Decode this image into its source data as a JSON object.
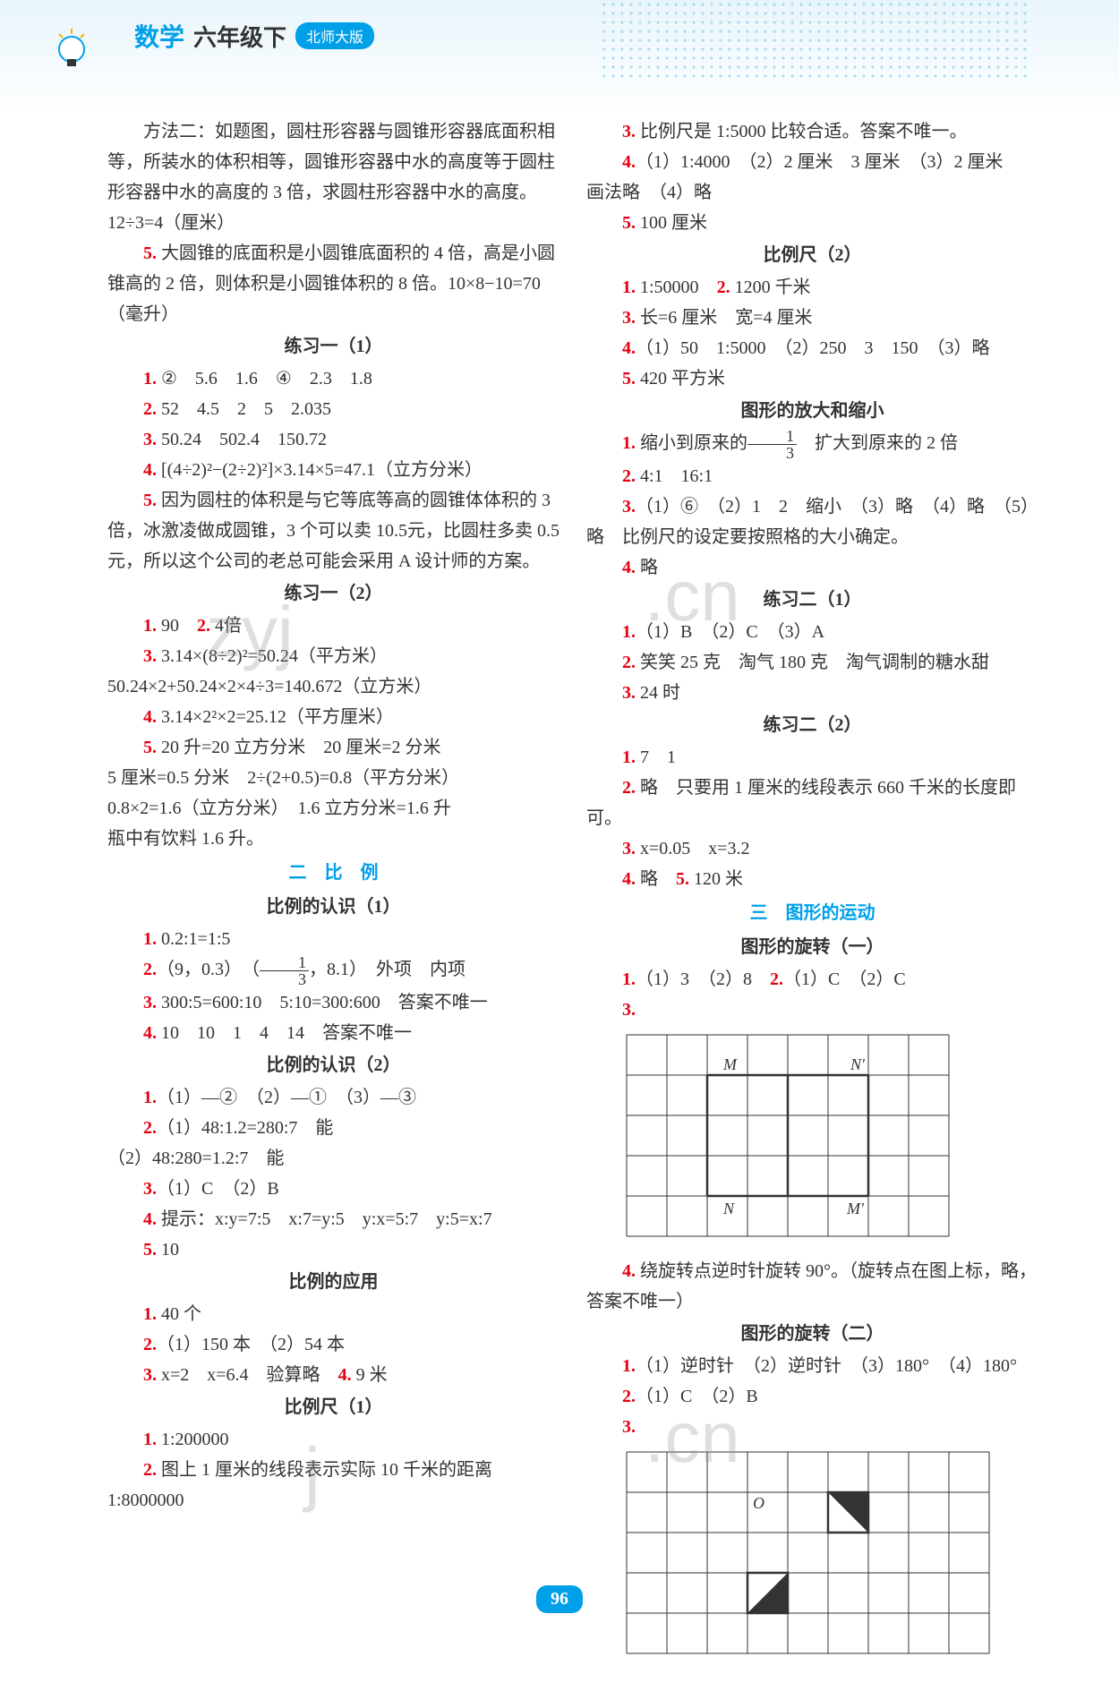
{
  "header": {
    "subject": "数学",
    "grade": "六年级下",
    "edition": "北师大版"
  },
  "watermarks": {
    "w1": "zyj",
    "w2": ".cn",
    "w3": "j",
    "w4": ".cn"
  },
  "left": {
    "p1": "方法二：如题图，圆柱形容器与圆锥形容器底面积相等，所装水的体积相等，圆锥形容器中水的高度等于圆柱形容器中水的高度的 3 倍，求圆柱形容器中水的高度。12÷3=4（厘米）",
    "q5a": "5.",
    "q5a_text": " 大圆锥的底面积是小圆锥底面积的 4 倍，高是小圆锥高的 2 倍，则体积是小圆锥体积的 8 倍。10×8−10=70（毫升）",
    "title_lx1_1": "练习一（1）",
    "lx1_1_1": "1.",
    "lx1_1_1t": " ②　5.6　1.6　④　2.3　1.8",
    "lx1_1_2": "2.",
    "lx1_1_2t": " 52　4.5　2　5　2.035",
    "lx1_1_3": "3.",
    "lx1_1_3t": " 50.24　502.4　150.72",
    "lx1_1_4": "4.",
    "lx1_1_4t": " [(4÷2)²−(2÷2)²]×3.14×5=47.1（立方分米）",
    "lx1_1_5": "5.",
    "lx1_1_5t": " 因为圆柱的体积是与它等底等高的圆锥体体积的 3 倍，冰激凌做成圆锥，3 个可以卖 10.5元，比圆柱多卖 0.5 元，所以这个公司的老总可能会采用 A 设计师的方案。",
    "title_lx1_2": "练习一（2）",
    "lx1_2_1": "1.",
    "lx1_2_1t": " 90　",
    "lx1_2_2": "2.",
    "lx1_2_2t": " 4倍",
    "lx1_2_3": "3.",
    "lx1_2_3t": " 3.14×(8÷2)²=50.24（平方米）",
    "lx1_2_3b": "50.24×2+50.24×2×4÷3=140.672（立方米）",
    "lx1_2_4": "4.",
    "lx1_2_4t": " 3.14×2²×2=25.12（平方厘米）",
    "lx1_2_5": "5.",
    "lx1_2_5t": " 20 升=20 立方分米　20 厘米=2 分米",
    "lx1_2_5b": "5 厘米=0.5 分米　2÷(2+0.5)=0.8（平方分米）",
    "lx1_2_5c": "0.8×2=1.6（立方分米）　1.6 立方分米=1.6 升",
    "lx1_2_5d": "瓶中有饮料 1.6 升。",
    "sec2_title": "二　比　例",
    "title_bl1": "比例的认识（1）",
    "bl1_1": "1.",
    "bl1_1t": " 0.2:1=1:5",
    "bl1_2": "2.",
    "bl1_2t": "（9，0.3）　",
    "bl1_2t2": "　外项　内项",
    "bl1_3": "3.",
    "bl1_3t": " 300:5=600:10　5:10=300:600　答案不唯一",
    "bl1_4": "4.",
    "bl1_4t": " 10　10　1　4　14　答案不唯一",
    "title_bl2": "比例的认识（2）",
    "bl2_1": "1.",
    "bl2_1t": "（1）—②　（2）—①　（3）—③",
    "bl2_2": "2.",
    "bl2_2t": "（1）48:1.2=280:7　能",
    "bl2_2b": "（2）48:280=1.2:7　能",
    "bl2_3": "3.",
    "bl2_3t": "（1）C　（2）B",
    "bl2_4": "4.",
    "bl2_4t": " 提示：x:y=7:5　x:7=y:5　y:x=5:7　y:5=x:7",
    "bl2_5": "5.",
    "bl2_5t": " 10",
    "title_bly": "比例的应用",
    "bly_1": "1.",
    "bly_1t": " 40 个",
    "bly_2": "2.",
    "bly_2t": "（1）150 本　（2）54 本",
    "bly_3": "3.",
    "bly_3t": " x=2　x=6.4　验算略　",
    "bly_4": "4.",
    "bly_4t": " 9 米",
    "title_blc1": "比例尺（1）",
    "blc1_1": "1.",
    "blc1_1t": " 1:200000",
    "blc1_2": "2.",
    "blc1_2t": " 图上 1 厘米的线段表示实际 10 千米的距离　1:8000000"
  },
  "right": {
    "r3": "3.",
    "r3t": " 比例尺是 1:5000 比较合适。答案不唯一。",
    "r4": "4.",
    "r4t": "（1）1:4000　（2）2 厘米　3 厘米　（3）2 厘米　画法略　（4）略",
    "r5": "5.",
    "r5t": " 100 厘米",
    "title_blc2": "比例尺（2）",
    "blc2_1": "1.",
    "blc2_1t": " 1:50000　",
    "blc2_2": "2.",
    "blc2_2t": " 1200 千米",
    "blc2_3": "3.",
    "blc2_3t": " 长=6 厘米　宽=4 厘米",
    "blc2_4": "4.",
    "blc2_4t": "（1）50　1:5000　（2）250　3　150　（3）略",
    "blc2_5": "5.",
    "blc2_5t": " 420 平方米",
    "title_tfd": "图形的放大和缩小",
    "tfd_1": "1.",
    "tfd_1t": " 缩小到原来的",
    "tfd_1t2": "　扩大到原来的 2 倍",
    "tfd_2": "2.",
    "tfd_2t": " 4:1　16:1",
    "tfd_3": "3.",
    "tfd_3t": "（1）⑥　（2）1　2　缩小　（3）略　（4）略　（5）略　比例尺的设定要按照格的大小确定。",
    "tfd_4": "4.",
    "tfd_4t": " 略",
    "title_lx2_1": "练习二（1）",
    "lx2_1_1": "1.",
    "lx2_1_1t": "（1）B　（2）C　（3）A",
    "lx2_1_2": "2.",
    "lx2_1_2t": " 笑笑 25 克　淘气 180 克　淘气调制的糖水甜",
    "lx2_1_3": "3.",
    "lx2_1_3t": " 24 时",
    "title_lx2_2": "练习二（2）",
    "lx2_2_1": "1.",
    "lx2_2_1t": " 7　1",
    "lx2_2_2": "2.",
    "lx2_2_2t": " 略　只要用 1 厘米的线段表示 660 千米的长度即可。",
    "lx2_2_3": "3.",
    "lx2_2_3t": " x=0.05　x=3.2",
    "lx2_2_4": "4.",
    "lx2_2_4t": " 略　",
    "lx2_2_5": "5.",
    "lx2_2_5t": " 120 米",
    "sec3_title": "三　图形的运动",
    "title_txxz1": "图形的旋转（一）",
    "txxz1_1": "1.",
    "txxz1_1t": "（1）3　（2）8　",
    "txxz1_2": "2.",
    "txxz1_2t": "（1）C　（2）C",
    "txxz1_3": "3.",
    "txxz1_4": "4.",
    "txxz1_4t": " 绕旋转点逆时针旋转 90°。（旋转点在图上标，略，答案不唯一）",
    "title_txxz2": "图形的旋转（二）",
    "txxz2_1": "1.",
    "txxz2_1t": "（1）逆时针　（2）逆时针　（3）180°　（4）180°",
    "txxz2_2": "2.",
    "txxz2_2t": "（1）C　（2）B",
    "txxz2_3": "3."
  },
  "diagram1": {
    "cols": 8,
    "rows": 5,
    "cell": 45,
    "labels": {
      "M": "M",
      "Np": "N'",
      "N": "N",
      "Mp": "M'"
    }
  },
  "diagram2": {
    "cols": 9,
    "rows": 5,
    "cell": 45,
    "O": "O"
  },
  "page": "96"
}
